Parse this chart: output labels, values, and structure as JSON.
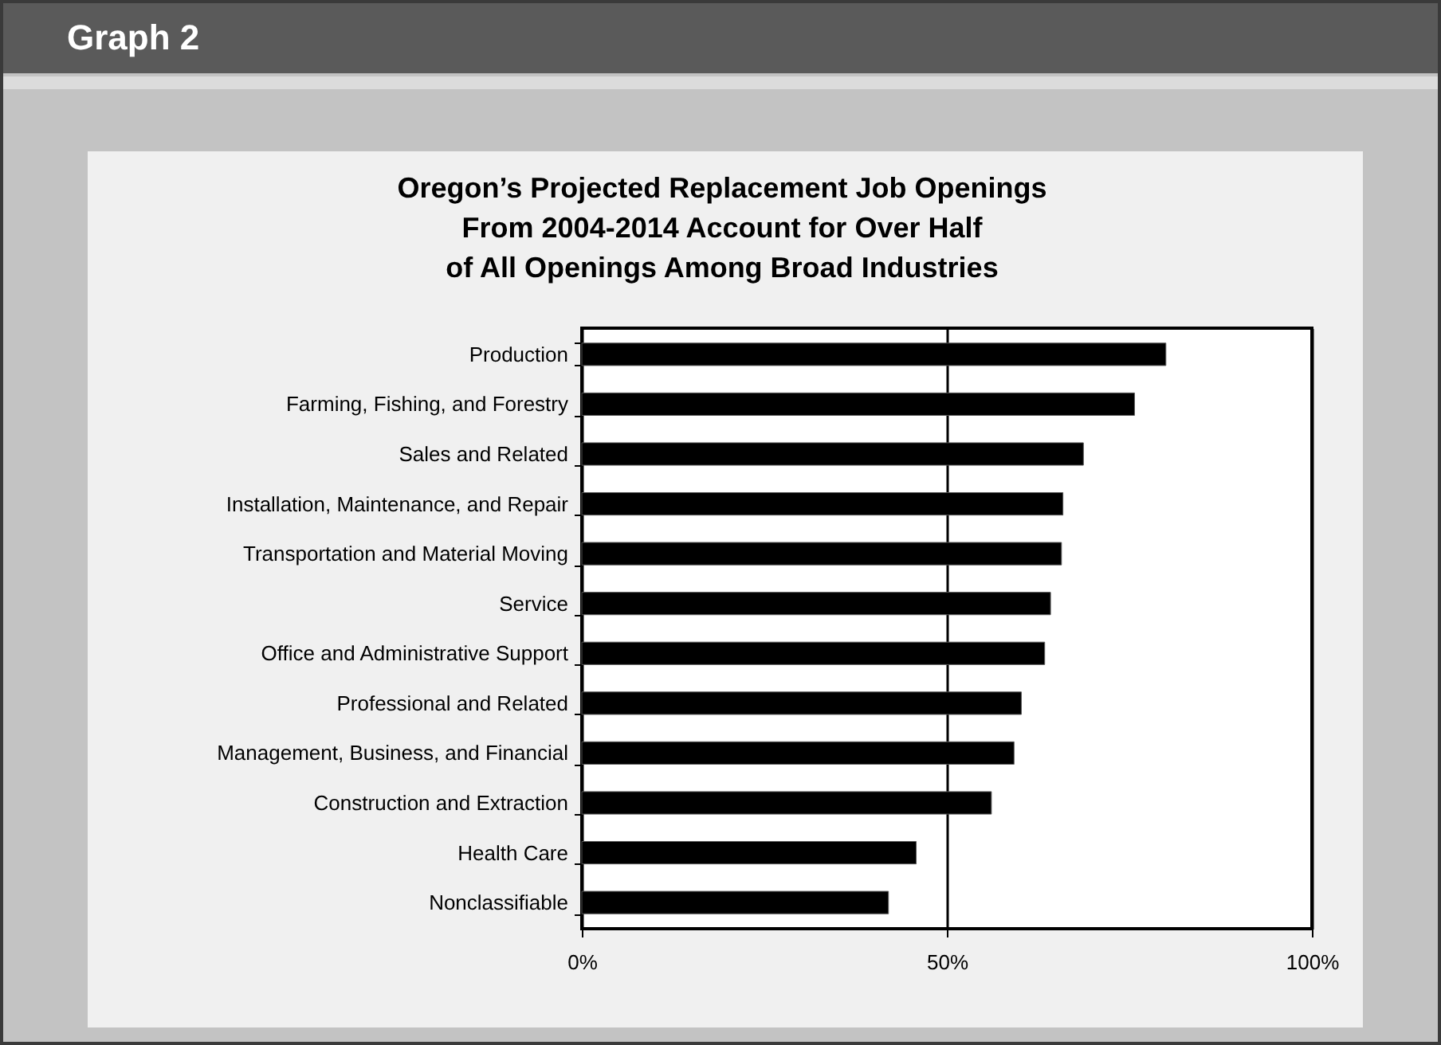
{
  "chart_data": {
    "type": "bar",
    "orientation": "horizontal",
    "title": "Oregon’s Projected Replacement Job Openings\nFrom 2004-2014 Account for Over Half\nof All Openings Among Broad Industries",
    "annotations": [
      "Graph 2"
    ],
    "categories": [
      "Production",
      "Farming, Fishing, and Forestry",
      "Sales and Related",
      "Installation, Maintenance, and Repair",
      "Transportation and Material Moving",
      "Service",
      "Office and Administrative Support",
      "Professional and Related",
      "Management, Business, and Financial",
      "Construction and Extraction",
      "Health Care",
      "Nonclassifiable"
    ],
    "values": [
      80,
      75.7,
      68.7,
      65.9,
      65.7,
      64.2,
      63.4,
      60.2,
      59.2,
      56.1,
      45.8,
      42
    ],
    "color": "#000000",
    "xlim": [
      0,
      100
    ],
    "xticks": [
      {
        "value": 0,
        "label": "0%"
      },
      {
        "value": 50,
        "label": "50%"
      },
      {
        "value": 100,
        "label": "100%"
      }
    ],
    "grid": "x"
  }
}
